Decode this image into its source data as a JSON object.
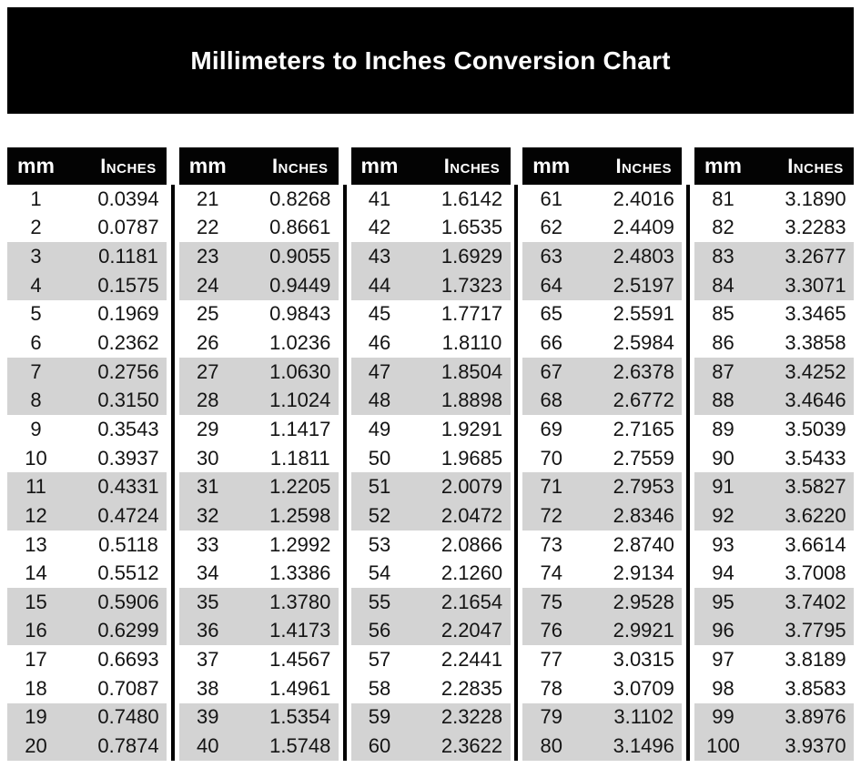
{
  "page": {
    "title": "Millimeters to Inches Conversion Chart"
  },
  "table": {
    "headers": {
      "mm": "mm",
      "inches": "Inches"
    },
    "groups": [
      {
        "rows": [
          [
            "1",
            "0.0394"
          ],
          [
            "2",
            "0.0787"
          ],
          [
            "3",
            "0.1181"
          ],
          [
            "4",
            "0.1575"
          ],
          [
            "5",
            "0.1969"
          ],
          [
            "6",
            "0.2362"
          ],
          [
            "7",
            "0.2756"
          ],
          [
            "8",
            "0.3150"
          ],
          [
            "9",
            "0.3543"
          ],
          [
            "10",
            "0.3937"
          ],
          [
            "11",
            "0.4331"
          ],
          [
            "12",
            "0.4724"
          ],
          [
            "13",
            "0.5118"
          ],
          [
            "14",
            "0.5512"
          ],
          [
            "15",
            "0.5906"
          ],
          [
            "16",
            "0.6299"
          ],
          [
            "17",
            "0.6693"
          ],
          [
            "18",
            "0.7087"
          ],
          [
            "19",
            "0.7480"
          ],
          [
            "20",
            "0.7874"
          ]
        ]
      },
      {
        "rows": [
          [
            "21",
            "0.8268"
          ],
          [
            "22",
            "0.8661"
          ],
          [
            "23",
            "0.9055"
          ],
          [
            "24",
            "0.9449"
          ],
          [
            "25",
            "0.9843"
          ],
          [
            "26",
            "1.0236"
          ],
          [
            "27",
            "1.0630"
          ],
          [
            "28",
            "1.1024"
          ],
          [
            "29",
            "1.1417"
          ],
          [
            "30",
            "1.1811"
          ],
          [
            "31",
            "1.2205"
          ],
          [
            "32",
            "1.2598"
          ],
          [
            "33",
            "1.2992"
          ],
          [
            "34",
            "1.3386"
          ],
          [
            "35",
            "1.3780"
          ],
          [
            "36",
            "1.4173"
          ],
          [
            "37",
            "1.4567"
          ],
          [
            "38",
            "1.4961"
          ],
          [
            "39",
            "1.5354"
          ],
          [
            "40",
            "1.5748"
          ]
        ]
      },
      {
        "rows": [
          [
            "41",
            "1.6142"
          ],
          [
            "42",
            "1.6535"
          ],
          [
            "43",
            "1.6929"
          ],
          [
            "44",
            "1.7323"
          ],
          [
            "45",
            "1.7717"
          ],
          [
            "46",
            "1.8110"
          ],
          [
            "47",
            "1.8504"
          ],
          [
            "48",
            "1.8898"
          ],
          [
            "49",
            "1.9291"
          ],
          [
            "50",
            "1.9685"
          ],
          [
            "51",
            "2.0079"
          ],
          [
            "52",
            "2.0472"
          ],
          [
            "53",
            "2.0866"
          ],
          [
            "54",
            "2.1260"
          ],
          [
            "55",
            "2.1654"
          ],
          [
            "56",
            "2.2047"
          ],
          [
            "57",
            "2.2441"
          ],
          [
            "58",
            "2.2835"
          ],
          [
            "59",
            "2.3228"
          ],
          [
            "60",
            "2.3622"
          ]
        ]
      },
      {
        "rows": [
          [
            "61",
            "2.4016"
          ],
          [
            "62",
            "2.4409"
          ],
          [
            "63",
            "2.4803"
          ],
          [
            "64",
            "2.5197"
          ],
          [
            "65",
            "2.5591"
          ],
          [
            "66",
            "2.5984"
          ],
          [
            "67",
            "2.6378"
          ],
          [
            "68",
            "2.6772"
          ],
          [
            "69",
            "2.7165"
          ],
          [
            "70",
            "2.7559"
          ],
          [
            "71",
            "2.7953"
          ],
          [
            "72",
            "2.8346"
          ],
          [
            "73",
            "2.8740"
          ],
          [
            "74",
            "2.9134"
          ],
          [
            "75",
            "2.9528"
          ],
          [
            "76",
            "2.9921"
          ],
          [
            "77",
            "3.0315"
          ],
          [
            "78",
            "3.0709"
          ],
          [
            "79",
            "3.1102"
          ],
          [
            "80",
            "3.1496"
          ]
        ]
      },
      {
        "rows": [
          [
            "81",
            "3.1890"
          ],
          [
            "82",
            "3.2283"
          ],
          [
            "83",
            "3.2677"
          ],
          [
            "84",
            "3.3071"
          ],
          [
            "85",
            "3.3465"
          ],
          [
            "86",
            "3.3858"
          ],
          [
            "87",
            "3.4252"
          ],
          [
            "88",
            "3.4646"
          ],
          [
            "89",
            "3.5039"
          ],
          [
            "90",
            "3.5433"
          ],
          [
            "91",
            "3.5827"
          ],
          [
            "92",
            "3.6220"
          ],
          [
            "93",
            "3.6614"
          ],
          [
            "94",
            "3.7008"
          ],
          [
            "95",
            "3.7402"
          ],
          [
            "96",
            "3.7795"
          ],
          [
            "97",
            "3.8189"
          ],
          [
            "98",
            "3.8583"
          ],
          [
            "99",
            "3.8976"
          ],
          [
            "100",
            "3.9370"
          ]
        ]
      }
    ]
  },
  "colors": {
    "banner_bg": "#000000",
    "header_bg": "#030303",
    "header_text": "#ffffff",
    "row_alt_bg": "#d3d3d3",
    "row_bg": "#ffffff",
    "data_text": "#141414",
    "divider": "#000000"
  }
}
